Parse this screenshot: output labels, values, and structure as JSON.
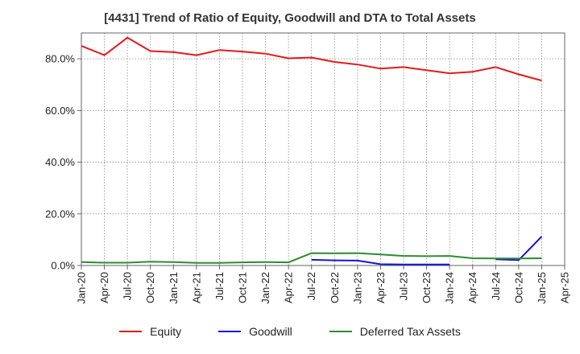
{
  "chart_data": {
    "type": "line",
    "title": "[4431]  Trend of Ratio of Equity, Goodwill and DTA to Total Assets",
    "xlabel": "",
    "ylabel": "",
    "ylim": [
      0,
      0.9
    ],
    "y_ticks": [
      0,
      0.2,
      0.4,
      0.6,
      0.8
    ],
    "y_tick_labels": [
      "0.0%",
      "20.0%",
      "40.0%",
      "60.0%",
      "80.0%"
    ],
    "x_tick_labels": [
      "Jan-20",
      "Apr-20",
      "Jul-20",
      "Oct-20",
      "Jan-21",
      "Apr-21",
      "Jul-21",
      "Oct-21",
      "Jan-22",
      "Apr-22",
      "Jul-22",
      "Oct-22",
      "Jan-23",
      "Apr-23",
      "Jul-23",
      "Oct-23",
      "Jan-24",
      "Apr-24",
      "Jul-24",
      "Oct-24",
      "Jan-25",
      "Apr-25"
    ],
    "grid": true,
    "legend_position": "bottom",
    "series": [
      {
        "name": "Equity",
        "color": "#e31a1c",
        "values": [
          0.85,
          0.814,
          0.882,
          0.83,
          0.826,
          0.814,
          0.834,
          0.828,
          0.82,
          0.802,
          0.805,
          0.788,
          0.778,
          0.762,
          0.768,
          0.756,
          0.744,
          0.75,
          0.768,
          0.74,
          0.716,
          null
        ]
      },
      {
        "name": "Goodwill",
        "color": "#1515d6",
        "values": [
          null,
          null,
          null,
          null,
          null,
          null,
          null,
          null,
          null,
          null,
          0.022,
          0.02,
          0.019,
          0.005,
          0.004,
          0.004,
          0.004,
          null,
          0.024,
          0.021,
          0.112,
          null
        ]
      },
      {
        "name": "Deferred Tax Assets",
        "color": "#2e8b2e",
        "values": [
          0.013,
          0.011,
          0.011,
          0.015,
          0.013,
          0.01,
          0.01,
          0.012,
          0.013,
          0.012,
          0.048,
          0.047,
          0.048,
          0.043,
          0.037,
          0.036,
          0.037,
          0.028,
          0.027,
          0.027,
          0.028,
          null
        ]
      }
    ]
  }
}
